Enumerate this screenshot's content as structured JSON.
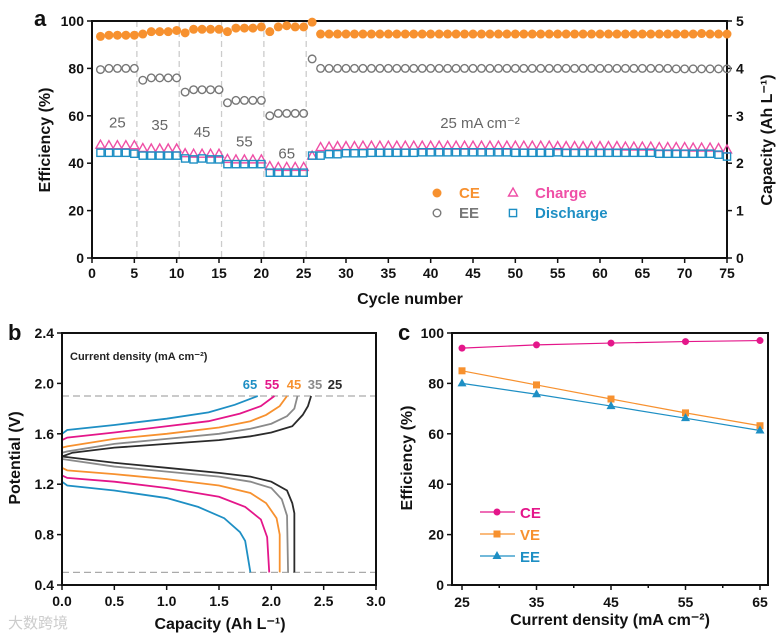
{
  "chart_data": [
    {
      "panel": "a",
      "type": "scatter",
      "xlabel": "Cycle number",
      "ylabel": "Efficiency (%)",
      "y2label": "Capacity (Ah L⁻¹)",
      "xlim": [
        0,
        75
      ],
      "ylim": [
        0,
        100
      ],
      "y2lim": [
        0,
        5
      ],
      "xticks": [
        0,
        5,
        10,
        15,
        20,
        25,
        30,
        35,
        40,
        45,
        50,
        55,
        60,
        65,
        70,
        75
      ],
      "yticks": [
        0,
        20,
        40,
        60,
        80,
        100
      ],
      "y2ticks": [
        0,
        1,
        2,
        3,
        4,
        5
      ],
      "vlines": [
        5,
        10,
        15,
        20,
        25
      ],
      "annotations": [
        "25",
        "35",
        "45",
        "55",
        "65"
      ],
      "annotation_main": "25 mA cm⁻²",
      "legend": [
        "CE",
        "EE",
        "Charge",
        "Discharge"
      ],
      "legend_position": "lower-right",
      "series": [
        {
          "name": "CE",
          "axis": "left",
          "color": "#f7912f",
          "marker": "filled-circle",
          "values": [
            93.5,
            94,
            94,
            94,
            94,
            94.5,
            95.5,
            95.5,
            95.5,
            96,
            95,
            96.5,
            96.5,
            96.5,
            96.5,
            95.5,
            97,
            97,
            97,
            97.5,
            95.5,
            97.5,
            98,
            97.5,
            97.5,
            99.5,
            94.5,
            94.5,
            94.5,
            94.5,
            94.5,
            94.5,
            94.5,
            94.5,
            94.5,
            94.5,
            94.5,
            94.5,
            94.5,
            94.5,
            94.5,
            94.5,
            94.5,
            94.5,
            94.5,
            94.5,
            94.5,
            94.5,
            94.5,
            94.5,
            94.5,
            94.5,
            94.5,
            94.5,
            94.5,
            94.5,
            94.5,
            94.5,
            94.5,
            94.5,
            94.5,
            94.5,
            94.5,
            94.5,
            94.5,
            94.5,
            94.5,
            94.5,
            94.5,
            94.5,
            94.5,
            94.7,
            94.5,
            94.5,
            94.5
          ]
        },
        {
          "name": "EE",
          "axis": "left",
          "color": "#777777",
          "marker": "open-circle",
          "values": [
            79.5,
            80,
            80,
            80,
            80,
            75,
            76,
            76,
            76,
            76,
            70,
            71,
            71,
            71,
            71,
            65.5,
            66.5,
            66.5,
            66.5,
            66.5,
            60,
            61,
            61,
            61,
            61,
            84,
            80,
            80,
            80,
            80,
            80,
            80,
            80,
            80,
            80,
            80,
            80,
            80,
            80,
            80,
            80,
            80,
            80,
            80,
            80,
            80,
            80,
            80,
            80,
            80,
            80,
            80,
            80,
            80,
            80,
            80,
            80,
            80,
            80,
            80,
            80,
            80,
            80,
            80,
            80,
            80,
            80,
            80,
            79.8,
            79.8,
            79.8,
            79.8,
            79.8,
            79.8,
            79.8
          ]
        },
        {
          "name": "Charge",
          "axis": "right",
          "color": "#ef4fa6",
          "marker": "open-triangle",
          "values": [
            2.38,
            2.37,
            2.37,
            2.37,
            2.37,
            2.31,
            2.3,
            2.3,
            2.3,
            2.3,
            2.2,
            2.19,
            2.19,
            2.19,
            2.19,
            2.08,
            2.07,
            2.07,
            2.07,
            2.07,
            1.93,
            1.91,
            1.91,
            1.91,
            1.91,
            2.15,
            2.33,
            2.34,
            2.35,
            2.35,
            2.35,
            2.36,
            2.36,
            2.36,
            2.36,
            2.36,
            2.36,
            2.36,
            2.36,
            2.36,
            2.36,
            2.36,
            2.36,
            2.36,
            2.36,
            2.36,
            2.36,
            2.36,
            2.36,
            2.36,
            2.36,
            2.36,
            2.36,
            2.36,
            2.35,
            2.35,
            2.35,
            2.35,
            2.35,
            2.35,
            2.35,
            2.35,
            2.34,
            2.34,
            2.34,
            2.34,
            2.33,
            2.33,
            2.33,
            2.33,
            2.32,
            2.32,
            2.32,
            2.31,
            2.28
          ]
        },
        {
          "name": "Discharge",
          "axis": "right",
          "color": "#1e8fc4",
          "marker": "open-square",
          "values": [
            2.22,
            2.22,
            2.22,
            2.22,
            2.2,
            2.16,
            2.16,
            2.16,
            2.16,
            2.16,
            2.1,
            2.08,
            2.1,
            2.08,
            2.08,
            1.98,
            1.98,
            1.98,
            1.98,
            1.98,
            1.8,
            1.8,
            1.8,
            1.8,
            1.8,
            2.16,
            2.16,
            2.19,
            2.19,
            2.21,
            2.21,
            2.21,
            2.22,
            2.22,
            2.22,
            2.22,
            2.22,
            2.22,
            2.23,
            2.23,
            2.23,
            2.23,
            2.23,
            2.23,
            2.23,
            2.23,
            2.23,
            2.23,
            2.23,
            2.22,
            2.22,
            2.22,
            2.22,
            2.22,
            2.23,
            2.22,
            2.22,
            2.22,
            2.22,
            2.22,
            2.22,
            2.22,
            2.22,
            2.22,
            2.22,
            2.22,
            2.2,
            2.2,
            2.2,
            2.2,
            2.2,
            2.2,
            2.2,
            2.18,
            2.14
          ]
        }
      ]
    },
    {
      "panel": "b",
      "type": "line",
      "xlabel": "Capacity (Ah L⁻¹)",
      "ylabel": "Potential (V)",
      "xlim": [
        0,
        3.0
      ],
      "ylim": [
        0.4,
        2.4
      ],
      "xticks": [
        "0.0",
        "0.5",
        "1.0",
        "1.5",
        "2.0",
        "2.5",
        "3.0"
      ],
      "yticks": [
        "0.4",
        "0.8",
        "1.2",
        "1.6",
        "2.0",
        "2.4"
      ],
      "hlines": [
        1.9,
        0.5
      ],
      "legend_title": "Current density (mA cm⁻²)",
      "legend_position": "top-right",
      "series": [
        {
          "name": "25",
          "color": "#2b2b2b",
          "charge": [
            [
              0,
              1.42
            ],
            [
              0.1,
              1.45
            ],
            [
              0.5,
              1.49
            ],
            [
              1.0,
              1.52
            ],
            [
              1.5,
              1.55
            ],
            [
              1.8,
              1.58
            ],
            [
              2.0,
              1.61
            ],
            [
              2.2,
              1.66
            ],
            [
              2.3,
              1.75
            ],
            [
              2.35,
              1.82
            ],
            [
              2.38,
              1.9
            ]
          ],
          "discharge": [
            [
              0,
              1.42
            ],
            [
              0.5,
              1.37
            ],
            [
              1.0,
              1.33
            ],
            [
              1.5,
              1.29
            ],
            [
              1.8,
              1.26
            ],
            [
              2.0,
              1.22
            ],
            [
              2.15,
              1.15
            ],
            [
              2.2,
              1.05
            ],
            [
              2.22,
              0.97
            ],
            [
              2.22,
              0.5
            ]
          ]
        },
        {
          "name": "35",
          "color": "#8a8a8a",
          "charge": [
            [
              0,
              1.45
            ],
            [
              0.05,
              1.46
            ],
            [
              0.5,
              1.52
            ],
            [
              1.0,
              1.56
            ],
            [
              1.5,
              1.6
            ],
            [
              1.8,
              1.64
            ],
            [
              2.0,
              1.68
            ],
            [
              2.15,
              1.74
            ],
            [
              2.22,
              1.8
            ],
            [
              2.25,
              1.9
            ]
          ],
          "discharge": [
            [
              0,
              1.4
            ],
            [
              0.5,
              1.34
            ],
            [
              1.0,
              1.3
            ],
            [
              1.5,
              1.26
            ],
            [
              1.8,
              1.22
            ],
            [
              2.0,
              1.17
            ],
            [
              2.1,
              1.08
            ],
            [
              2.15,
              0.95
            ],
            [
              2.16,
              0.5
            ]
          ]
        },
        {
          "name": "45",
          "color": "#f7912f",
          "charge": [
            [
              0,
              1.49
            ],
            [
              0.05,
              1.5
            ],
            [
              0.5,
              1.56
            ],
            [
              1.0,
              1.6
            ],
            [
              1.5,
              1.65
            ],
            [
              1.8,
              1.7
            ],
            [
              1.95,
              1.75
            ],
            [
              2.08,
              1.82
            ],
            [
              2.15,
              1.9
            ]
          ],
          "discharge": [
            [
              0,
              1.33
            ],
            [
              0.05,
              1.31
            ],
            [
              0.5,
              1.28
            ],
            [
              1.0,
              1.24
            ],
            [
              1.5,
              1.19
            ],
            [
              1.8,
              1.13
            ],
            [
              1.95,
              1.05
            ],
            [
              2.05,
              0.93
            ],
            [
              2.08,
              0.8
            ],
            [
              2.08,
              0.5
            ]
          ]
        },
        {
          "name": "55",
          "color": "#e4168a",
          "charge": [
            [
              0,
              1.55
            ],
            [
              0.05,
              1.57
            ],
            [
              0.5,
              1.61
            ],
            [
              1.0,
              1.66
            ],
            [
              1.4,
              1.7
            ],
            [
              1.7,
              1.76
            ],
            [
              1.9,
              1.82
            ],
            [
              2.03,
              1.9
            ]
          ],
          "discharge": [
            [
              0,
              1.27
            ],
            [
              0.05,
              1.25
            ],
            [
              0.5,
              1.22
            ],
            [
              1.0,
              1.17
            ],
            [
              1.5,
              1.1
            ],
            [
              1.75,
              1.02
            ],
            [
              1.9,
              0.92
            ],
            [
              1.96,
              0.78
            ],
            [
              1.98,
              0.5
            ]
          ]
        },
        {
          "name": "65",
          "color": "#1e8fc4",
          "charge": [
            [
              0,
              1.6
            ],
            [
              0.05,
              1.63
            ],
            [
              0.5,
              1.67
            ],
            [
              1.0,
              1.72
            ],
            [
              1.4,
              1.77
            ],
            [
              1.65,
              1.83
            ],
            [
              1.87,
              1.9
            ]
          ],
          "discharge": [
            [
              0,
              1.22
            ],
            [
              0.05,
              1.19
            ],
            [
              0.5,
              1.15
            ],
            [
              1.0,
              1.09
            ],
            [
              1.3,
              1.02
            ],
            [
              1.55,
              0.93
            ],
            [
              1.7,
              0.82
            ],
            [
              1.75,
              0.75
            ],
            [
              1.78,
              0.6
            ],
            [
              1.8,
              0.5
            ]
          ]
        }
      ]
    },
    {
      "panel": "c",
      "type": "line",
      "xlabel": "Current density (mA cm⁻²)",
      "ylabel": "Efficiency (%)",
      "xlim": [
        25,
        65
      ],
      "ylim": [
        0,
        100
      ],
      "categories": [
        25,
        35,
        45,
        55,
        65
      ],
      "xticks": [
        25,
        35,
        45,
        55,
        65
      ],
      "yticks": [
        0,
        20,
        40,
        60,
        80,
        100
      ],
      "legend_position": "lower-left",
      "series": [
        {
          "name": "CE",
          "color": "#e4168a",
          "marker": "circle",
          "values": [
            94,
            95.3,
            96,
            96.6,
            97
          ]
        },
        {
          "name": "VE",
          "color": "#f7912f",
          "marker": "square",
          "values": [
            85,
            79.4,
            73.8,
            68.3,
            63.2
          ]
        },
        {
          "name": "EE",
          "color": "#1e8fc4",
          "marker": "triangle",
          "values": [
            80,
            75.7,
            71,
            66.2,
            61.3
          ]
        }
      ]
    }
  ],
  "panel_labels": [
    "a",
    "b",
    "c"
  ],
  "watermark": "大数跨境"
}
